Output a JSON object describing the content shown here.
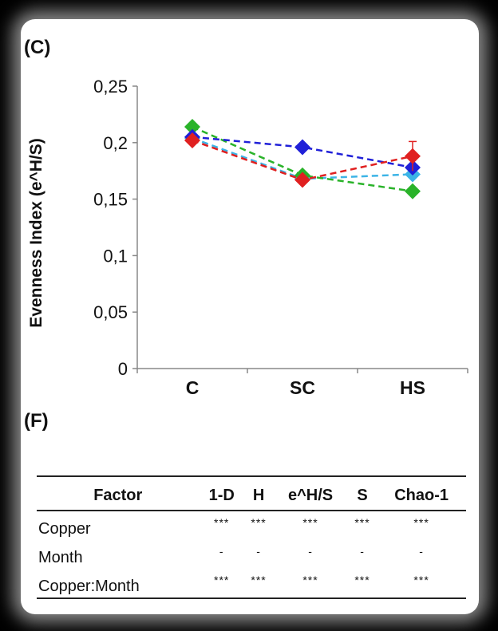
{
  "panels": {
    "c_label": "(C)",
    "f_label": "(F)"
  },
  "chart_data": {
    "type": "line",
    "categories": [
      "C",
      "SC",
      "HS"
    ],
    "ylabel": "Evenness Index (e^H/S)",
    "ylim": [
      0,
      0.25
    ],
    "yticks": [
      "0",
      "0,05",
      "0,1",
      "0,15",
      "0,2",
      "0,25"
    ],
    "ytick_values": [
      0,
      0.05,
      0.1,
      0.15,
      0.2,
      0.25
    ],
    "series": [
      {
        "color": "#3cb4e6",
        "values": [
          0.204,
          0.168,
          0.172
        ]
      },
      {
        "color": "#2ab32a",
        "values": [
          0.214,
          0.171,
          0.157
        ]
      },
      {
        "color": "#2020d8",
        "values": [
          0.205,
          0.196,
          0.178
        ]
      },
      {
        "color": "#e02020",
        "values": [
          0.202,
          0.167,
          0.188
        ],
        "errors": [
          0.002,
          0.002,
          0.013
        ]
      }
    ],
    "grid": false,
    "marker": "diamond",
    "line_style": "dashed"
  },
  "table": {
    "headers": [
      "Factor",
      "1-D",
      "H",
      "e^H/S",
      "S",
      "Chao-1"
    ],
    "rows": [
      {
        "name": "Copper",
        "cells": [
          "***",
          "***",
          "***",
          "***",
          "***"
        ]
      },
      {
        "name": "Month",
        "cells": [
          "-",
          "-",
          "-",
          "-",
          "-"
        ]
      },
      {
        "name": "Copper:Month",
        "cells": [
          "***",
          "***",
          "***",
          "***",
          "***"
        ]
      }
    ]
  }
}
